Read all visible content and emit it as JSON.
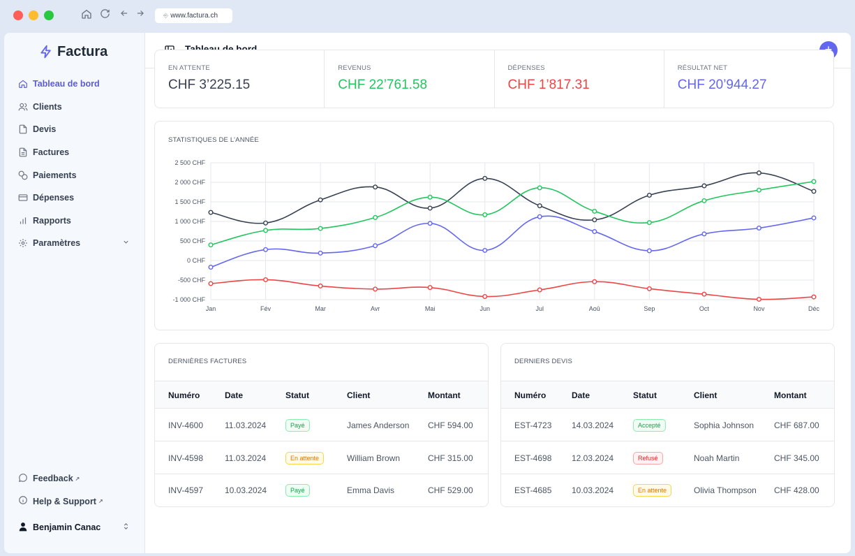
{
  "browser": {
    "url": "www.factura.ch"
  },
  "colors": {
    "accent": "#6366f1",
    "green": "#22c55e",
    "red": "#ef4444",
    "dark": "#374151"
  },
  "sidebar": {
    "brand": "Factura",
    "items": [
      {
        "label": "Tableau de bord",
        "icon": "home-icon",
        "active": true
      },
      {
        "label": "Clients",
        "icon": "users-icon"
      },
      {
        "label": "Devis",
        "icon": "file-icon"
      },
      {
        "label": "Factures",
        "icon": "file-text-icon"
      },
      {
        "label": "Paiements",
        "icon": "coins-icon"
      },
      {
        "label": "Dépenses",
        "icon": "credit-card-icon"
      },
      {
        "label": "Rapports",
        "icon": "bar-chart-icon"
      },
      {
        "label": "Paramètres",
        "icon": "gear-icon"
      }
    ],
    "feedback": "Feedback",
    "help": "Help & Support",
    "user": "Benjamin Canac"
  },
  "header": {
    "title": "Tableau de bord"
  },
  "stats": [
    {
      "label": "EN ATTENTE",
      "value": "CHF 3’225.15",
      "color": "#374151"
    },
    {
      "label": "REVENUS",
      "value": "CHF 22’761.58",
      "color": "#22c55e"
    },
    {
      "label": "DÉPENSES",
      "value": "CHF 1’817.31",
      "color": "#ef4444"
    },
    {
      "label": "RÉSULTAT NET",
      "value": "CHF 20’944.27",
      "color": "#6366f1"
    }
  ],
  "chart_title": "STATISTIQUES DE L’ANNÉE",
  "chart_data": {
    "type": "line",
    "categories": [
      "Jan",
      "Fév",
      "Mar",
      "Avr",
      "Mai",
      "Jun",
      "Jul",
      "Aoû",
      "Sep",
      "Oct",
      "Nov",
      "Déc"
    ],
    "y_ticks": [
      "2 500 CHF",
      "2 000 CHF",
      "1 500 CHF",
      "1 000 CHF",
      "500 CHF",
      "0 CHF",
      "-500 CHF",
      "-1 000 CHF"
    ],
    "ylim": [
      -1000,
      2500
    ],
    "grid": true,
    "series": [
      {
        "color": "#374151",
        "values": [
          1230,
          960,
          1550,
          1880,
          1340,
          2100,
          1400,
          1040,
          1670,
          1910,
          2240,
          1770
        ]
      },
      {
        "color": "#22c55e",
        "values": [
          400,
          770,
          820,
          1100,
          1620,
          1170,
          1860,
          1260,
          970,
          1530,
          1800,
          2020
        ]
      },
      {
        "color": "#6366f1",
        "values": [
          -170,
          280,
          190,
          380,
          950,
          260,
          1120,
          740,
          250,
          680,
          830,
          1090
        ]
      },
      {
        "color": "#ef4444",
        "values": [
          -590,
          -490,
          -650,
          -730,
          -690,
          -920,
          -750,
          -540,
          -720,
          -860,
          -990,
          -930
        ]
      }
    ]
  },
  "invoices": {
    "title": "DERNIÈRES FACTURES",
    "headers": [
      "Numéro",
      "Date",
      "Statut",
      "Client",
      "Montant"
    ],
    "rows": [
      {
        "number": "INV-4600",
        "date": "11.03.2024",
        "status": "Payé",
        "status_kind": "green",
        "client": "James Anderson",
        "amount": "CHF 594.00"
      },
      {
        "number": "INV-4598",
        "date": "11.03.2024",
        "status": "En attente",
        "status_kind": "yellow",
        "client": "William Brown",
        "amount": "CHF 315.00"
      },
      {
        "number": "INV-4597",
        "date": "10.03.2024",
        "status": "Payé",
        "status_kind": "green",
        "client": "Emma Davis",
        "amount": "CHF 529.00"
      }
    ]
  },
  "quotes": {
    "title": "DERNIERS DEVIS",
    "headers": [
      "Numéro",
      "Date",
      "Statut",
      "Client",
      "Montant"
    ],
    "rows": [
      {
        "number": "EST-4723",
        "date": "14.03.2024",
        "status": "Accepté",
        "status_kind": "green",
        "client": "Sophia Johnson",
        "amount": "CHF 687.00"
      },
      {
        "number": "EST-4698",
        "date": "12.03.2024",
        "status": "Refusé",
        "status_kind": "red",
        "client": "Noah Martin",
        "amount": "CHF 345.00"
      },
      {
        "number": "EST-4685",
        "date": "10.03.2024",
        "status": "En attente",
        "status_kind": "yellow",
        "client": "Olivia Thompson",
        "amount": "CHF 428.00"
      }
    ]
  }
}
